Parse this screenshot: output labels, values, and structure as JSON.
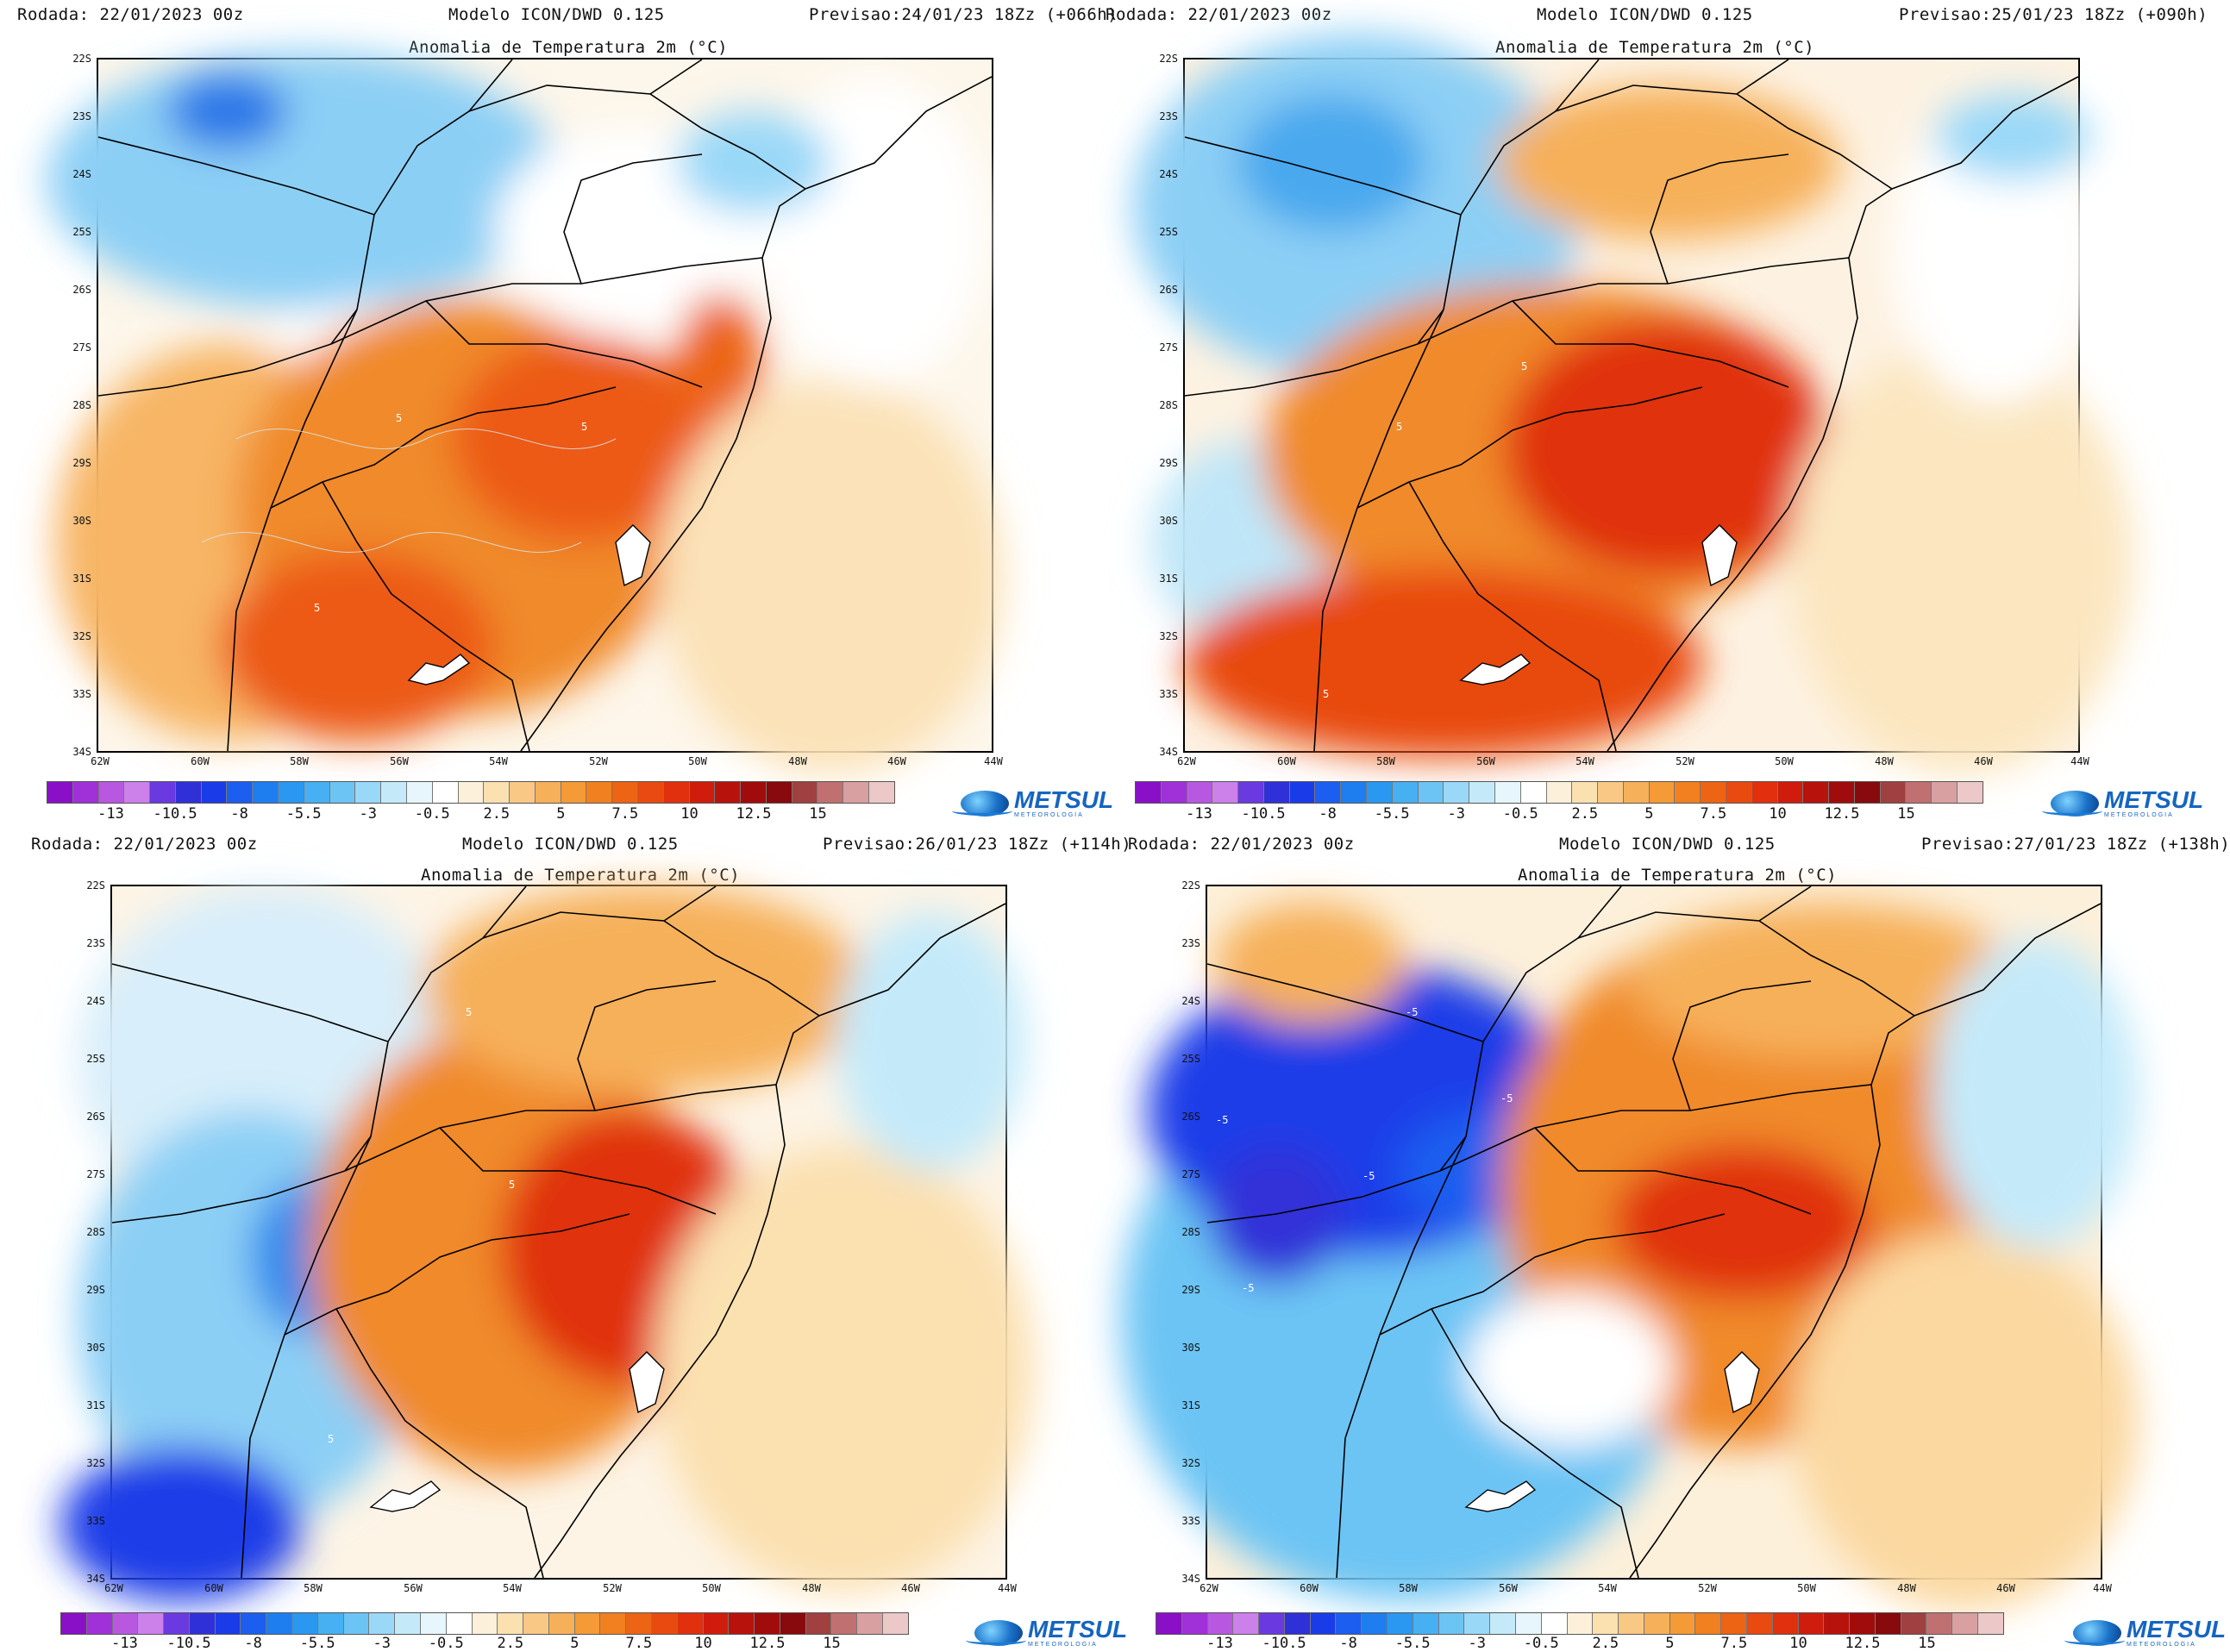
{
  "panels": [
    {
      "run": "Rodada: 22/01/2023 00z",
      "model": "Modelo ICON/DWD 0.125",
      "forecast": "Previsao:24/01/23 18Zz (+066h)",
      "title": "Anomalia de Temperatura 2m (°C)",
      "contour_label": "5"
    },
    {
      "run": "Rodada: 22/01/2023 00z",
      "model": "Modelo ICON/DWD 0.125",
      "forecast": "Previsao:25/01/23 18Zz (+090h)",
      "title": "Anomalia de Temperatura 2m (°C)",
      "contour_label": "5"
    },
    {
      "run": "Rodada: 22/01/2023 00z",
      "model": "Modelo ICON/DWD 0.125",
      "forecast": "Previsao:26/01/23 18Zz (+114h)",
      "title": "Anomalia de Temperatura 2m (°C)",
      "contour_label": "5"
    },
    {
      "run": "Rodada: 22/01/2023 00z",
      "model": "Modelo ICON/DWD 0.125",
      "forecast": "Previsao:27/01/23 18Zz (+138h)",
      "title": "Anomalia de Temperatura 2m (°C)",
      "contour_label": "-5"
    }
  ],
  "lat_ticks": [
    "22S",
    "23S",
    "24S",
    "25S",
    "26S",
    "27S",
    "28S",
    "29S",
    "30S",
    "31S",
    "32S",
    "33S",
    "34S"
  ],
  "lon_ticks": [
    "62W",
    "60W",
    "58W",
    "56W",
    "54W",
    "52W",
    "50W",
    "48W",
    "46W",
    "44W"
  ],
  "colorbar": {
    "labels": [
      "-13",
      "-10.5",
      "-8",
      "-5.5",
      "-3",
      "-0.5",
      "2.5",
      "5",
      "7.5",
      "10",
      "12.5",
      "15"
    ],
    "colors": [
      "#8a10c8",
      "#a030d8",
      "#b858e0",
      "#cc80ea",
      "#6a3ae0",
      "#3030d8",
      "#1a3ce8",
      "#1c5ef0",
      "#1e7ef0",
      "#2a98f0",
      "#46b0f2",
      "#6cc4f4",
      "#9ad8f8",
      "#c4eafa",
      "#e6f6fc",
      "#ffffff",
      "#fdf0da",
      "#fbe0b0",
      "#f8c884",
      "#f6b05a",
      "#f49a36",
      "#f08020",
      "#ec6414",
      "#e84a10",
      "#e0300e",
      "#d01c0c",
      "#b8120c",
      "#a00c0c",
      "#880a0c",
      "#a04040",
      "#c07070",
      "#d8a0a0",
      "#ecc8c8"
    ]
  },
  "logo": {
    "name": "METSUL",
    "tagline": "METEOROLOGIA"
  },
  "colors": {
    "warm": "#f08020",
    "hot": "#e0300e",
    "cold": "#1e7ef0",
    "very_cold": "#1a3ce8"
  }
}
